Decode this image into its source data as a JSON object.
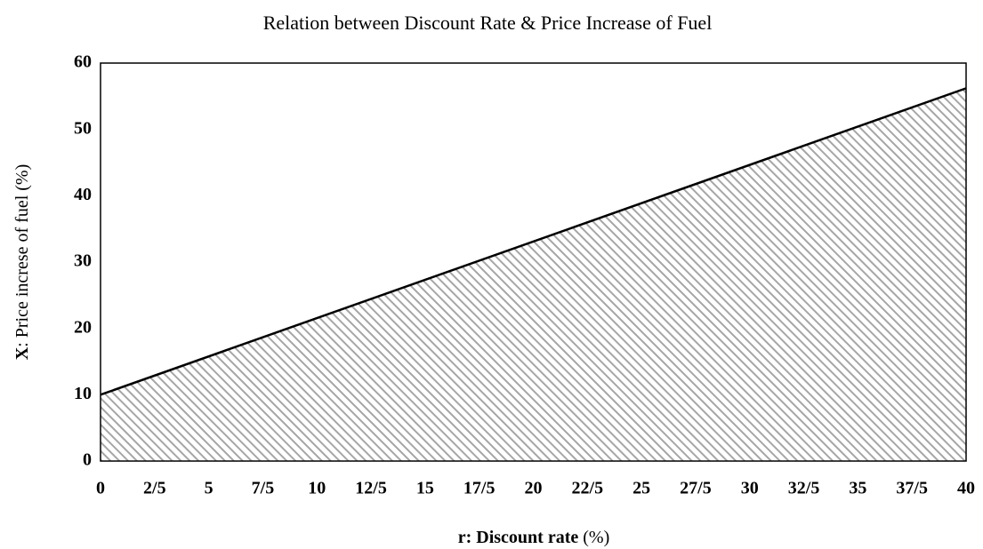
{
  "chart_data": {
    "type": "area",
    "title": "Relation between Discount Rate & Price Increase of Fuel",
    "x_label": [
      "r: Discount rate",
      "(%)"
    ],
    "y_label": [
      "X",
      ": Price increse of fuel (%)"
    ],
    "x": [
      0,
      40
    ],
    "series": [
      {
        "color": "#000000",
        "fill": "#a6a6a6",
        "values": [
          10,
          56.2
        ]
      }
    ],
    "xlim": [
      0,
      40
    ],
    "xticks": [
      0,
      {
        "value": 2.5,
        "label": "2/5"
      },
      5,
      {
        "value": 7.5,
        "label": "7/5"
      },
      10,
      {
        "value": 12.5,
        "label": "12/5"
      },
      15,
      {
        "value": 17.5,
        "label": "17/5"
      },
      20,
      {
        "value": 22.5,
        "label": "22/5"
      },
      25,
      {
        "value": 27.5,
        "label": "27/5"
      },
      30,
      {
        "value": 32.5,
        "label": "32/5"
      },
      35,
      {
        "value": 37.5,
        "label": "37/5"
      },
      40
    ],
    "ylim": [
      0,
      60
    ],
    "yticks": [
      0,
      10,
      20,
      30,
      40,
      50,
      60
    ],
    "grid": false,
    "hatch": true
  }
}
